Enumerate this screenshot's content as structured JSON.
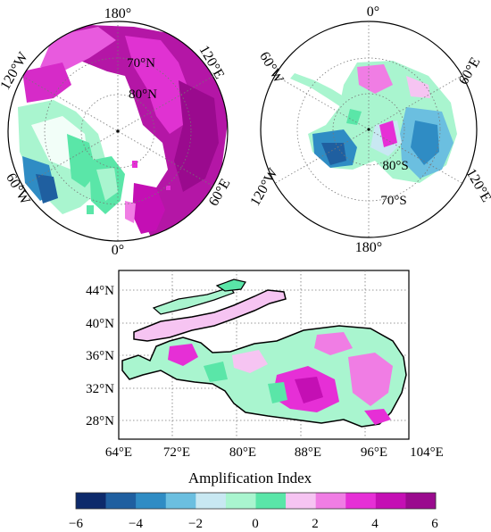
{
  "arctic_map": {
    "meridian_labels": [
      "180°",
      "120°E",
      "60°E",
      "0°",
      "60°W",
      "120°W"
    ],
    "latitude_labels": [
      "70°N",
      "80°N"
    ]
  },
  "antarctic_map": {
    "meridian_labels": [
      "0°",
      "60°E",
      "120°E",
      "180°",
      "120°W",
      "60°W"
    ],
    "latitude_labels": [
      "80°S",
      "70°S"
    ]
  },
  "tibet_map": {
    "lat_labels": [
      "44°N",
      "40°N",
      "36°N",
      "32°N",
      "28°N"
    ],
    "lon_labels": [
      "64°E",
      "72°E",
      "80°E",
      "88°E",
      "96°E",
      "104°E"
    ]
  },
  "colorbar": {
    "title": "Amplification Index",
    "tick_labels": [
      "−6",
      "−4",
      "−2",
      "0",
      "2",
      "4",
      "6"
    ],
    "range": [
      -6,
      6
    ],
    "colors": [
      "#0d2a6b",
      "#1f5fa0",
      "#2f8cc4",
      "#6bbfe0",
      "#c8e8f2",
      "#a9f5cf",
      "#5ae6a8",
      "#f6c4f2",
      "#f07de4",
      "#e62fd6",
      "#c40fb4",
      "#9a0a8e"
    ]
  }
}
